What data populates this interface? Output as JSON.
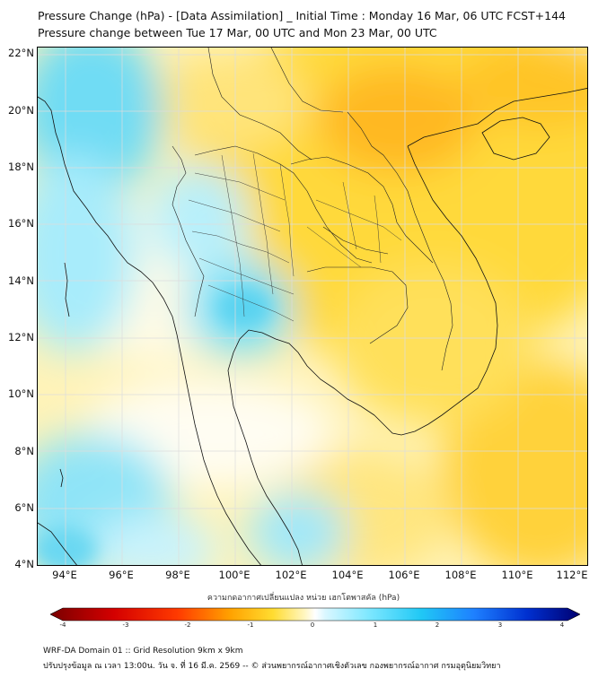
{
  "header": {
    "title": "Pressure Change (hPa) - [Data Assimilation] _ Initial Time : Monday 16 Mar, 06 UTC FCST+144",
    "subtitle": "Pressure change between Tue 17 Mar, 00 UTC and Mon 23 Mar, 00 UTC"
  },
  "map": {
    "lat_labels": [
      "22°N",
      "20°N",
      "18°N",
      "16°N",
      "14°N",
      "12°N",
      "10°N",
      "8°N",
      "6°N",
      "4°N"
    ],
    "lon_labels": [
      "94°E",
      "96°E",
      "98°E",
      "100°E",
      "102°E",
      "104°E",
      "106°E",
      "108°E",
      "110°E",
      "112°E"
    ],
    "lat_range": [
      4,
      22.3
    ],
    "lon_range": [
      93,
      112.5
    ],
    "grid": true,
    "colors": {
      "negative_strong": "#8b0000",
      "negative_mid": "#ff2a00",
      "negative_weak": "#ffd700",
      "neutral": "#ffffff",
      "positive_weak": "#7fe8ff",
      "positive_mid": "#1e90ff",
      "positive_strong": "#00008b"
    }
  },
  "colorbar": {
    "title": "ความกดอากาศเปลี่ยนแปลง หน่วย เฮกโตพาสคัล (hPa)",
    "range": [
      -4,
      4
    ],
    "ticks": [
      "-4",
      "-3",
      "-2",
      "-1",
      "0",
      "1",
      "2",
      "3",
      "4"
    ]
  },
  "footer": {
    "line1": "WRF-DA Domain 01 :: Grid Resolution 9km x 9km",
    "line2": "ปรับปรุงข้อมูล ณ เวลา 13:00น. วัน จ. ที่ 16 มี.ค. 2569 -- © ส่วนพยากรณ์อากาศเชิงตัวเลข กองพยากรณ์อากาศ กรมอุตุนิยมวิทยา"
  }
}
